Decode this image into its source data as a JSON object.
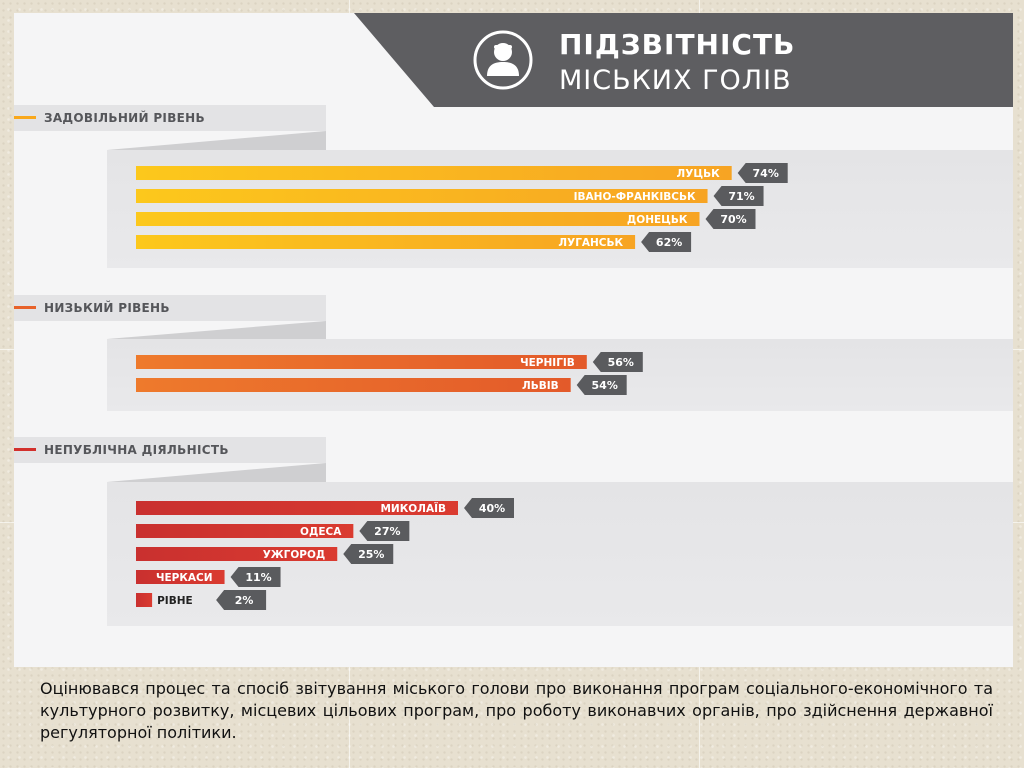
{
  "header": {
    "title_line1": "ПІДЗВІТНІСТЬ",
    "title_line2": "МІСЬКИХ ГОЛІВ",
    "icon": "person-icon"
  },
  "colors": {
    "satisfactory": "#f9a81c",
    "low": "#e7622a",
    "nonpublic": "#d2302c",
    "label_box": "#5a5b5e",
    "header_bg": "#5e5e61"
  },
  "chart_data": {
    "type": "bar",
    "unit": "%",
    "xlim": [
      0,
      100
    ],
    "groups": [
      {
        "name": "ЗАДОВІЛЬНИЙ РІВЕНЬ",
        "color_key": "satisfactory",
        "bars": [
          {
            "category": "ЛУЦЬК",
            "value": 74,
            "label": "74%"
          },
          {
            "category": "ІВАНО-ФРАНКІВСЬК",
            "value": 71,
            "label": "71%"
          },
          {
            "category": "ДОНЕЦЬК",
            "value": 70,
            "label": "70%"
          },
          {
            "category": "ЛУГАНСЬК",
            "value": 62,
            "label": "62%"
          }
        ]
      },
      {
        "name": "НИЗЬКИЙ РІВЕНЬ",
        "color_key": "low",
        "bars": [
          {
            "category": "ЧЕРНІГІВ",
            "value": 56,
            "label": "56%"
          },
          {
            "category": "ЛЬВІВ",
            "value": 54,
            "label": "54%"
          }
        ]
      },
      {
        "name": "НЕПУБЛІЧНА ДІЯЛЬНІСТЬ",
        "color_key": "nonpublic",
        "bars": [
          {
            "category": "МИКОЛАЇВ",
            "value": 40,
            "label": "40%"
          },
          {
            "category": "ОДЕСА",
            "value": 27,
            "label": "27%"
          },
          {
            "category": "УЖГОРОД",
            "value": 25,
            "label": "25%"
          },
          {
            "category": "ЧЕРКАСИ",
            "value": 11,
            "label": "11%"
          },
          {
            "category": "РІВНЕ",
            "value": 2,
            "label": "2%"
          }
        ]
      }
    ]
  },
  "caption": "Оцінювався процес та спосіб звітування міського голови про виконання програм соціального-економічного та культурного розвитку, місцевих цільових програм, про роботу виконавчих органів, про здійснення державної регуляторної політики."
}
